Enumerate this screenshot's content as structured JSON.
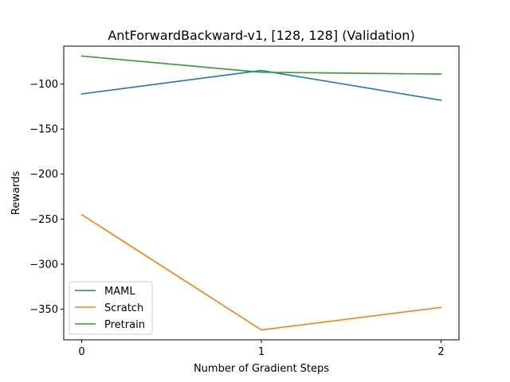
{
  "chart_data": {
    "type": "line",
    "title": "AntForwardBackward-v1, [128, 128] (Validation)",
    "xlabel": "Number of Gradient Steps",
    "ylabel": "Rewards",
    "x": [
      0,
      1,
      2
    ],
    "xticks": [
      0,
      1,
      2
    ],
    "xtick_labels": [
      "0",
      "1",
      "2"
    ],
    "yticks": [
      -350,
      -300,
      -250,
      -200,
      -150,
      -100
    ],
    "ytick_labels": [
      "−350",
      "−300",
      "−250",
      "−200",
      "−150",
      "−100"
    ],
    "xlim": [
      -0.1,
      2.1
    ],
    "ylim": [
      -384,
      -58
    ],
    "grid": false,
    "legend_position": "lower-left",
    "series": [
      {
        "name": "MAML",
        "color": "#1f77b4",
        "values": [
          -111,
          -85,
          -118
        ]
      },
      {
        "name": "Scratch",
        "color": "#ff7f0e",
        "values": [
          -245,
          -373,
          -348
        ]
      },
      {
        "name": "Pretrain",
        "color": "#2ca02c",
        "values": [
          -69,
          -87,
          -89
        ]
      }
    ]
  }
}
